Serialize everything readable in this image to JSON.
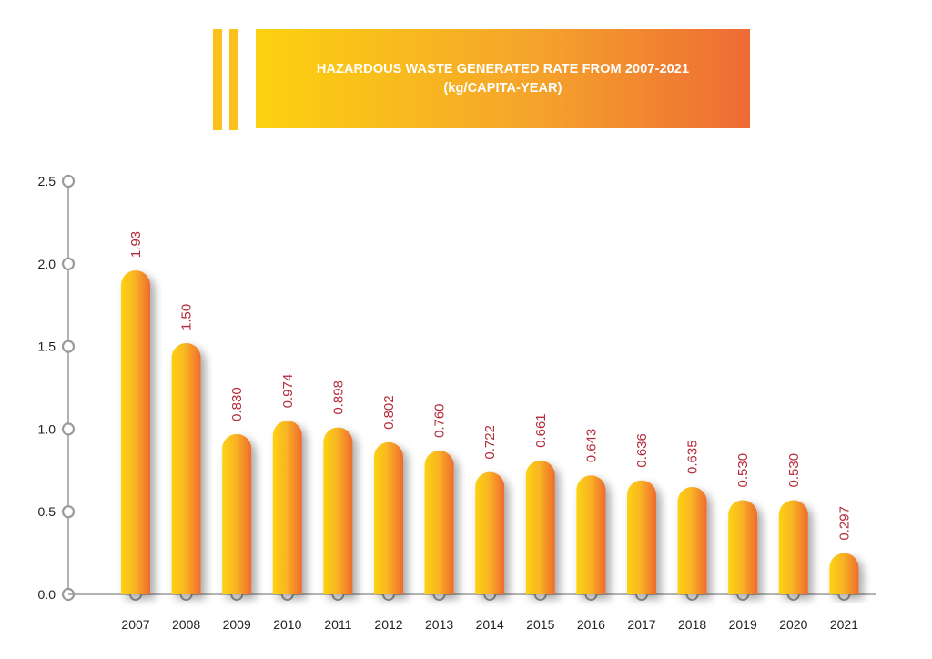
{
  "banner": {
    "title": "HAZARDOUS WASTE GENERATED RATE FROM 2007-2021",
    "subtitle": "(kg/CAPITA-YEAR)"
  },
  "colors": {
    "bar_light": "#fcd20f",
    "bar_mid": "#f9b624",
    "bar_dark": "#ef6a2e",
    "label": "#b52b3a",
    "axis": "#9a9a9a",
    "text": "#222222"
  },
  "chart_data": {
    "type": "bar",
    "title": "HAZARDOUS WASTE GENERATED RATE FROM 2007-2021 (kg/CAPITA-YEAR)",
    "xlabel": "",
    "ylabel": "",
    "ylim": [
      0,
      2.5
    ],
    "yticks": [
      0,
      0.5,
      1,
      1.5,
      2,
      2.5
    ],
    "ytick_labels": [
      "0.0",
      "0.5",
      "1.0",
      "1.5",
      "2.0",
      "2.5"
    ],
    "categories": [
      "2007",
      "2008",
      "2009",
      "2010",
      "2011",
      "2012",
      "2013",
      "2014",
      "2015",
      "2016",
      "2017",
      "2018",
      "2019",
      "2020",
      "2021"
    ],
    "values": [
      1.93,
      1.5,
      0.83,
      0.974,
      0.898,
      0.802,
      0.76,
      0.722,
      0.661,
      0.643,
      0.636,
      0.635,
      0.53,
      0.53,
      0.297
    ],
    "value_labels": [
      "1.93",
      "1.50",
      "0.830",
      "0.974",
      "0.898",
      "0.802",
      "0.760",
      "0.722",
      "0.661",
      "0.643",
      "0.636",
      "0.635",
      "0.530",
      "0.530",
      "0.297"
    ],
    "bar_tops": [
      1.96,
      1.52,
      0.97,
      1.05,
      1.01,
      0.92,
      0.87,
      0.74,
      0.81,
      0.72,
      0.69,
      0.65,
      0.57,
      0.57,
      0.25
    ],
    "grid": false,
    "legend": "none"
  }
}
